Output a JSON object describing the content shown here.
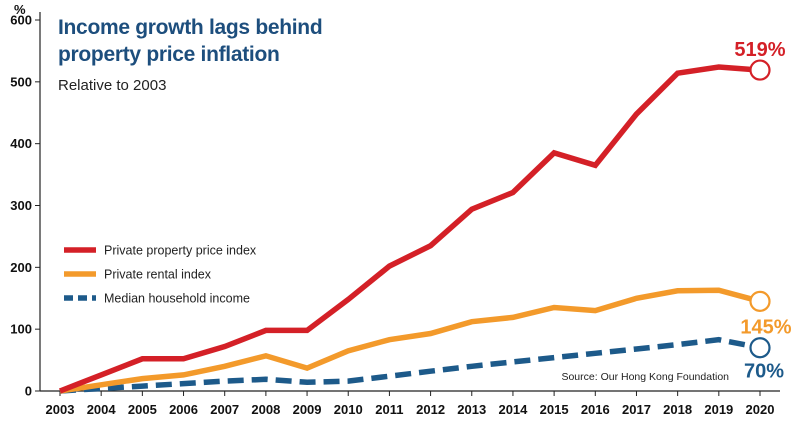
{
  "chart_data": {
    "type": "line",
    "title": "Income growth lags behind property price inflation",
    "subtitle": "Relative to 2003",
    "unit_label": "%",
    "source": "Source: Our Hong Kong Foundation",
    "x": [
      "2003",
      "2004",
      "2005",
      "2006",
      "2007",
      "2008",
      "2009",
      "2010",
      "2011",
      "2012",
      "2013",
      "2014",
      "2015",
      "2016",
      "2017",
      "2018",
      "2019",
      "2020"
    ],
    "ylim": [
      0,
      600
    ],
    "yticks": [
      0,
      100,
      200,
      300,
      400,
      500,
      600
    ],
    "grid": false,
    "legend_position": "left",
    "series": [
      {
        "name": "Private property price index",
        "color": "#d42027",
        "style": "solid",
        "values": [
          0,
          26,
          52,
          52,
          72,
          98,
          98,
          148,
          202,
          235,
          294,
          321,
          385,
          365,
          448,
          514,
          524,
          519
        ],
        "end_label": "519%"
      },
      {
        "name": "Private rental index",
        "color": "#f39a2b",
        "style": "solid",
        "values": [
          0,
          10,
          20,
          26,
          40,
          57,
          37,
          65,
          83,
          93,
          112,
          119,
          135,
          130,
          150,
          162,
          163,
          145
        ],
        "end_label": "145%"
      },
      {
        "name": "Median household income",
        "color": "#1d5a8a",
        "style": "dashed",
        "values": [
          0,
          4,
          8,
          12,
          16,
          19,
          14,
          16,
          24,
          32,
          40,
          47,
          54,
          61,
          68,
          75,
          83,
          70
        ],
        "end_label": "70%"
      }
    ]
  }
}
